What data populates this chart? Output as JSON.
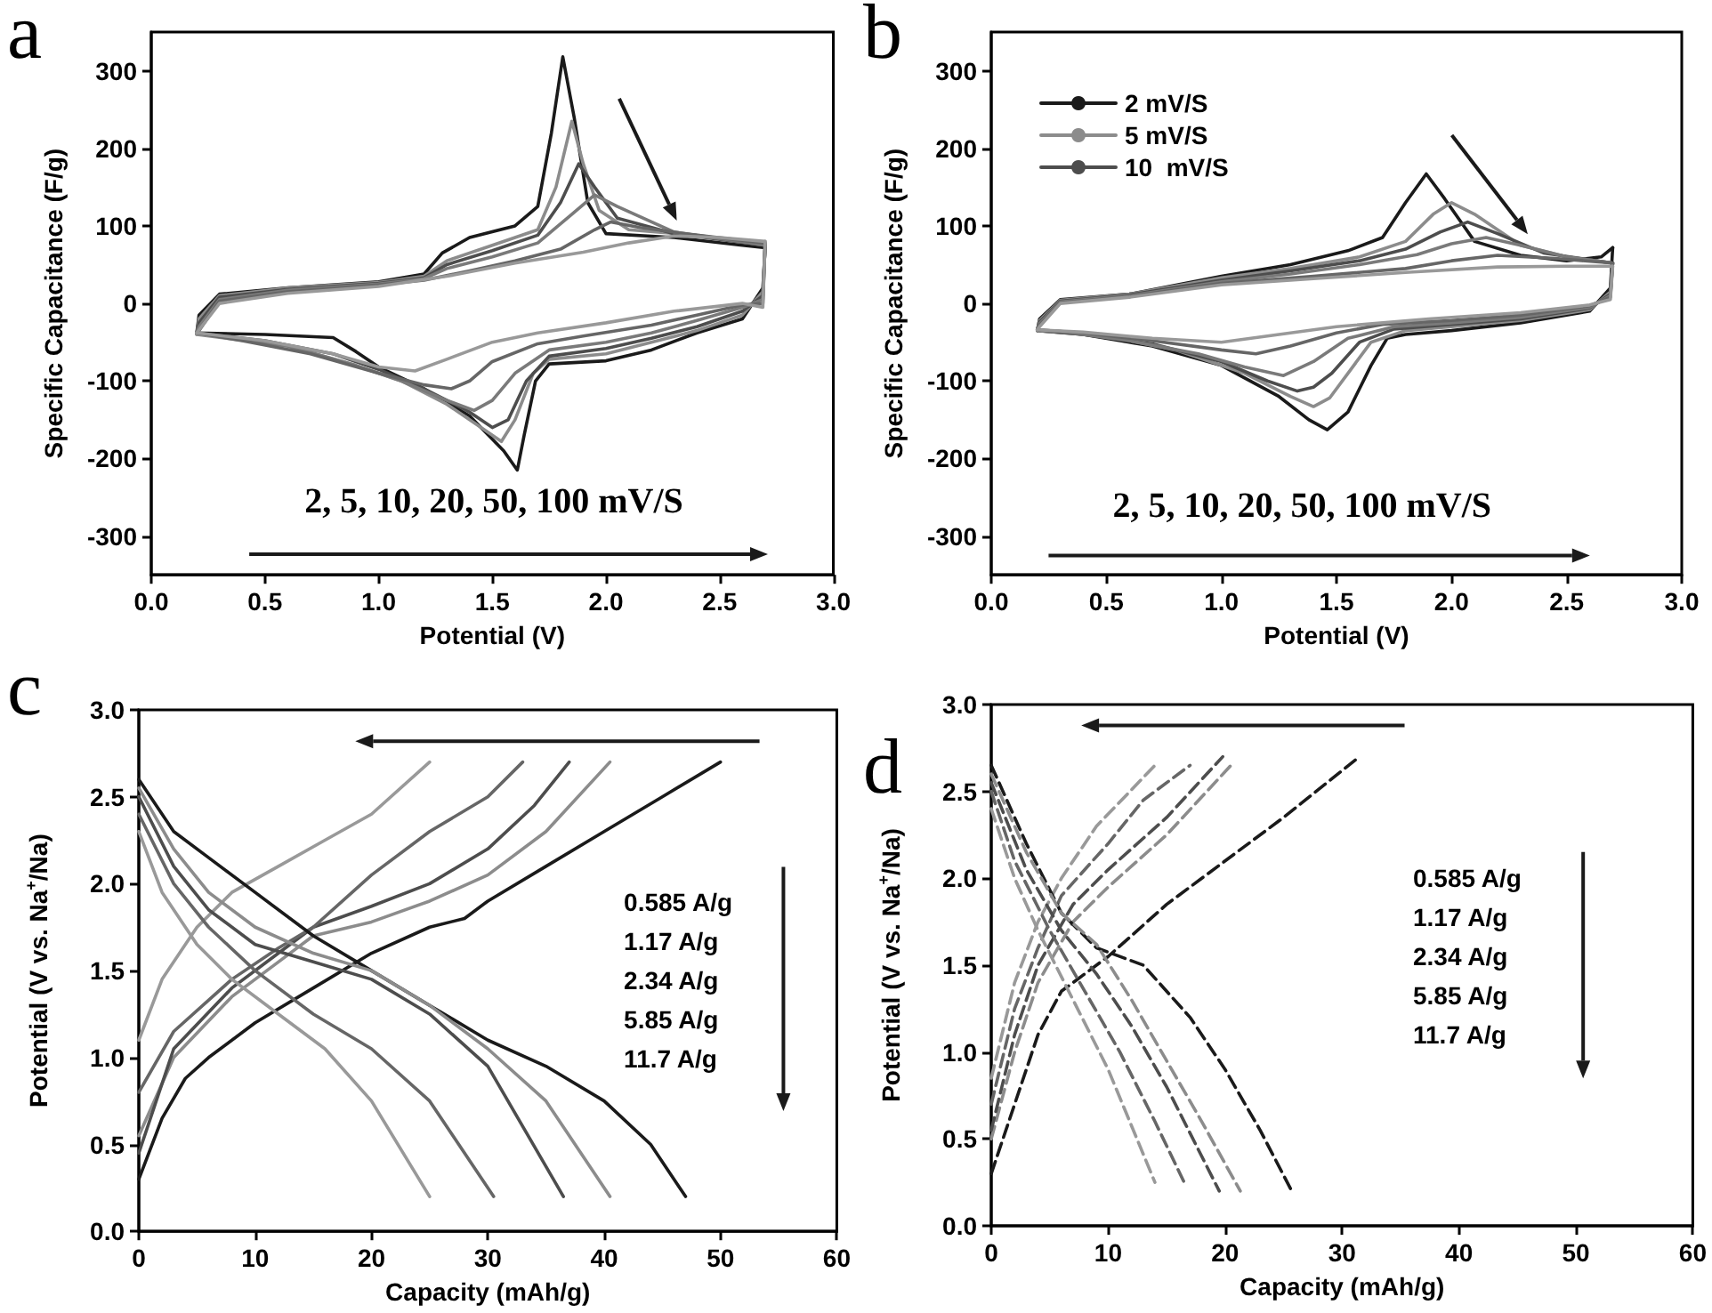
{
  "chart_data": [
    {
      "type": "line",
      "title": "a",
      "xlabel": "Potential (V)",
      "ylabel": "Specific Capacitance (F/g)",
      "xlim": [
        0,
        3
      ],
      "ylim": [
        -350,
        350
      ],
      "xticks": [
        {
          "value": 0,
          "label": "0.0"
        },
        {
          "value": 0.5,
          "label": "0.5"
        },
        {
          "value": 1,
          "label": "1.0"
        },
        {
          "value": 1.5,
          "label": "1.5"
        },
        {
          "value": 2,
          "label": "2.0"
        },
        {
          "value": 2.5,
          "label": "2.5"
        },
        {
          "value": 3,
          "label": "3.0"
        }
      ],
      "yticks": [
        -300,
        -200,
        -100,
        0,
        100,
        200,
        300
      ],
      "annotations": [
        "2, 5, 10, 20, 50, 100 mV/S"
      ],
      "series": [
        {
          "color": "#1a1a1a",
          "x": [
            0.2,
            0.21,
            0.3,
            0.6,
            1.0,
            1.2,
            1.28,
            1.4,
            1.6,
            1.7,
            1.76,
            1.81,
            1.86,
            1.92,
            2.0,
            2.3,
            2.6,
            2.7
          ],
          "values": [
            -38,
            -15,
            12,
            20,
            28,
            38,
            65,
            85,
            100,
            125,
            220,
            318,
            240,
            130,
            90,
            85,
            75,
            72
          ]
        },
        {
          "color": "#1a1a1a",
          "x": [
            2.7,
            2.69,
            2.6,
            2.4,
            2.2,
            2.0,
            1.75,
            1.69,
            1.64,
            1.61,
            1.55,
            1.4,
            1.2,
            1.0,
            0.9,
            0.8,
            0.5,
            0.2
          ],
          "values": [
            72,
            20,
            -20,
            -38,
            -60,
            -74,
            -78,
            -100,
            -170,
            -215,
            -190,
            -145,
            -110,
            -82,
            -62,
            -44,
            -40,
            -38
          ]
        },
        {
          "color": "#8c8c8c",
          "x": [
            0.2,
            0.21,
            0.3,
            0.6,
            1.0,
            1.2,
            1.3,
            1.5,
            1.7,
            1.78,
            1.85,
            1.9,
            1.97,
            2.1,
            2.4,
            2.7
          ],
          "values": [
            -40,
            -20,
            10,
            20,
            27,
            35,
            55,
            75,
            95,
            150,
            235,
            180,
            120,
            95,
            88,
            75
          ]
        },
        {
          "color": "#8c8c8c",
          "x": [
            2.7,
            2.69,
            2.6,
            2.4,
            2.2,
            2.0,
            1.75,
            1.68,
            1.6,
            1.54,
            1.45,
            1.3,
            1.1,
            0.9,
            0.6,
            0.2
          ],
          "values": [
            75,
            15,
            -15,
            -35,
            -50,
            -65,
            -72,
            -90,
            -150,
            -178,
            -160,
            -130,
            -100,
            -80,
            -55,
            -40
          ]
        },
        {
          "color": "#4d4d4d",
          "x": [
            0.2,
            0.21,
            0.3,
            0.6,
            1.0,
            1.2,
            1.3,
            1.5,
            1.7,
            1.8,
            1.88,
            1.95,
            2.05,
            2.3,
            2.7
          ],
          "values": [
            -38,
            -25,
            8,
            18,
            26,
            33,
            50,
            68,
            88,
            130,
            180,
            150,
            110,
            90,
            75
          ]
        },
        {
          "color": "#4d4d4d",
          "x": [
            2.7,
            2.69,
            2.6,
            2.4,
            2.2,
            2.0,
            1.75,
            1.65,
            1.57,
            1.5,
            1.4,
            1.2,
            1.0,
            0.8,
            0.5,
            0.2
          ],
          "values": [
            75,
            10,
            -10,
            -30,
            -45,
            -58,
            -68,
            -100,
            -150,
            -160,
            -140,
            -110,
            -85,
            -65,
            -48,
            -38
          ]
        },
        {
          "color": "#7a7a7a",
          "x": [
            0.2,
            0.21,
            0.3,
            0.6,
            1.0,
            1.2,
            1.3,
            1.5,
            1.7,
            1.85,
            1.95,
            2.05,
            2.3,
            2.7
          ],
          "values": [
            -38,
            -30,
            5,
            17,
            25,
            32,
            45,
            60,
            78,
            115,
            140,
            125,
            92,
            75
          ]
        },
        {
          "color": "#7a7a7a",
          "x": [
            2.7,
            2.69,
            2.6,
            2.4,
            2.2,
            2.0,
            1.75,
            1.6,
            1.5,
            1.42,
            1.3,
            1.1,
            0.9,
            0.6,
            0.2
          ],
          "values": [
            75,
            5,
            -5,
            -22,
            -38,
            -50,
            -60,
            -90,
            -125,
            -138,
            -125,
            -100,
            -80,
            -55,
            -38
          ]
        },
        {
          "color": "#666666",
          "x": [
            0.2,
            0.21,
            0.3,
            0.6,
            1.0,
            1.2,
            1.4,
            1.6,
            1.8,
            1.95,
            2.02,
            2.15,
            2.4,
            2.7
          ],
          "values": [
            -38,
            -35,
            3,
            15,
            24,
            30,
            42,
            55,
            70,
            95,
            105,
            98,
            88,
            78
          ]
        },
        {
          "color": "#666666",
          "x": [
            2.7,
            2.69,
            2.6,
            2.4,
            2.2,
            1.9,
            1.7,
            1.5,
            1.4,
            1.32,
            1.2,
            1.0,
            0.7,
            0.4,
            0.2
          ],
          "values": [
            78,
            0,
            -2,
            -15,
            -28,
            -42,
            -52,
            -75,
            -100,
            -110,
            -105,
            -90,
            -65,
            -48,
            -38
          ]
        },
        {
          "color": "#999999",
          "x": [
            0.2,
            0.3,
            0.6,
            1.0,
            1.3,
            1.6,
            1.9,
            2.1,
            2.3,
            2.5,
            2.7
          ],
          "values": [
            -38,
            0,
            13,
            22,
            35,
            52,
            66,
            78,
            87,
            85,
            80
          ]
        },
        {
          "color": "#999999",
          "x": [
            2.7,
            2.69,
            2.6,
            2.3,
            2.0,
            1.7,
            1.5,
            1.3,
            1.16,
            1.0,
            0.8,
            0.5,
            0.2
          ],
          "values": [
            80,
            -5,
            0,
            -10,
            -25,
            -38,
            -50,
            -72,
            -87,
            -82,
            -65,
            -48,
            -38
          ]
        }
      ]
    },
    {
      "type": "line",
      "title": "b",
      "xlabel": "Potential (V)",
      "ylabel": "Specific Capacitance (F/g)",
      "xlim": [
        0,
        3
      ],
      "ylim": [
        -350,
        350
      ],
      "xticks": [
        {
          "value": 0,
          "label": "0.0"
        },
        {
          "value": 0.5,
          "label": "0.5"
        },
        {
          "value": 1,
          "label": "1.0"
        },
        {
          "value": 1.5,
          "label": "1.5"
        },
        {
          "value": 2,
          "label": "2.0"
        },
        {
          "value": 2.5,
          "label": "2.5"
        },
        {
          "value": 3,
          "label": "3.0"
        }
      ],
      "yticks": [
        -300,
        -200,
        -100,
        0,
        100,
        200,
        300
      ],
      "legend": "top left",
      "annotations": [
        "2, 5, 10, 20, 50, 100 mV/S"
      ],
      "series": [
        {
          "name": "2 mV/S",
          "color": "#1a1a1a",
          "x": [
            0.2,
            0.21,
            0.3,
            0.6,
            1.0,
            1.3,
            1.55,
            1.7,
            1.8,
            1.89,
            1.97,
            2.1,
            2.3,
            2.5,
            2.65,
            2.7
          ],
          "values": [
            -35,
            -20,
            5,
            12,
            35,
            50,
            68,
            85,
            130,
            167,
            135,
            80,
            62,
            55,
            60,
            72
          ]
        },
        {
          "color": "#1a1a1a",
          "x": [
            2.7,
            2.69,
            2.6,
            2.3,
            2.0,
            1.8,
            1.72,
            1.65,
            1.55,
            1.46,
            1.38,
            1.25,
            1.0,
            0.7,
            0.4,
            0.2
          ],
          "values": [
            72,
            20,
            -10,
            -25,
            -35,
            -40,
            -45,
            -80,
            -140,
            -163,
            -150,
            -120,
            -80,
            -55,
            -40,
            -35
          ]
        },
        {
          "name": "5 mV/S",
          "color": "#8c8c8c",
          "x": [
            0.2,
            0.21,
            0.3,
            0.6,
            1.0,
            1.3,
            1.6,
            1.8,
            1.92,
            2.0,
            2.1,
            2.3,
            2.5,
            2.7
          ],
          "values": [
            -35,
            -22,
            4,
            12,
            33,
            45,
            60,
            80,
            115,
            130,
            115,
            75,
            60,
            52
          ]
        },
        {
          "color": "#8c8c8c",
          "x": [
            2.7,
            2.69,
            2.6,
            2.3,
            2.0,
            1.8,
            1.65,
            1.55,
            1.47,
            1.4,
            1.3,
            1.1,
            0.8,
            0.5,
            0.2
          ],
          "values": [
            52,
            15,
            -8,
            -22,
            -30,
            -35,
            -50,
            -90,
            -122,
            -133,
            -120,
            -90,
            -60,
            -42,
            -35
          ]
        },
        {
          "name": "10  mV/S",
          "color": "#4d4d4d",
          "x": [
            0.2,
            0.21,
            0.3,
            0.6,
            1.0,
            1.3,
            1.6,
            1.8,
            1.95,
            2.07,
            2.2,
            2.4,
            2.7
          ],
          "values": [
            -34,
            -24,
            3,
            11,
            30,
            42,
            55,
            70,
            92,
            105,
            90,
            65,
            52
          ]
        },
        {
          "color": "#4d4d4d",
          "x": [
            2.7,
            2.69,
            2.6,
            2.3,
            2.0,
            1.75,
            1.6,
            1.48,
            1.4,
            1.33,
            1.2,
            1.0,
            0.7,
            0.4,
            0.2
          ],
          "values": [
            52,
            12,
            -6,
            -20,
            -27,
            -33,
            -50,
            -90,
            -108,
            -113,
            -100,
            -75,
            -52,
            -40,
            -34
          ]
        },
        {
          "color": "#7a7a7a",
          "x": [
            0.2,
            0.21,
            0.3,
            0.6,
            1.0,
            1.3,
            1.6,
            1.85,
            2.0,
            2.15,
            2.3,
            2.5,
            2.7
          ],
          "values": [
            -34,
            -26,
            2,
            10,
            28,
            38,
            50,
            63,
            77,
            85,
            75,
            60,
            52
          ]
        },
        {
          "color": "#7a7a7a",
          "x": [
            2.7,
            2.69,
            2.6,
            2.3,
            2.0,
            1.75,
            1.55,
            1.4,
            1.27,
            1.1,
            0.9,
            0.6,
            0.3,
            0.2
          ],
          "values": [
            52,
            10,
            -5,
            -18,
            -25,
            -30,
            -45,
            -75,
            -93,
            -82,
            -65,
            -48,
            -36,
            -34
          ]
        },
        {
          "color": "#666666",
          "x": [
            0.2,
            0.21,
            0.3,
            0.6,
            1.0,
            1.4,
            1.8,
            2.0,
            2.2,
            2.45,
            2.7
          ],
          "values": [
            -34,
            -28,
            1,
            9,
            26,
            35,
            45,
            55,
            62,
            58,
            52
          ]
        },
        {
          "color": "#666666",
          "x": [
            2.7,
            2.69,
            2.6,
            2.3,
            2.0,
            1.7,
            1.5,
            1.3,
            1.15,
            1.0,
            0.7,
            0.4,
            0.2
          ],
          "values": [
            52,
            8,
            -3,
            -15,
            -22,
            -27,
            -38,
            -55,
            -65,
            -60,
            -48,
            -38,
            -34
          ]
        },
        {
          "color": "#999999",
          "x": [
            0.2,
            0.21,
            0.3,
            0.6,
            1.0,
            1.4,
            1.8,
            2.2,
            2.5,
            2.7
          ],
          "values": [
            -34,
            -30,
            0,
            8,
            24,
            32,
            40,
            47,
            48,
            48
          ]
        },
        {
          "color": "#999999",
          "x": [
            2.7,
            2.69,
            2.6,
            2.3,
            1.9,
            1.5,
            1.2,
            1.0,
            0.7,
            0.4,
            0.2
          ],
          "values": [
            48,
            5,
            -2,
            -12,
            -20,
            -30,
            -42,
            -50,
            -45,
            -37,
            -34
          ]
        }
      ]
    },
    {
      "type": "line",
      "title": "c",
      "xlabel": "Capacity (mAh/g)",
      "ylabel": "Potential (V vs. Na$^{+}$/Na)",
      "xlim": [
        0,
        60
      ],
      "ylim": [
        0,
        3
      ],
      "xticks": [
        0,
        10,
        20,
        30,
        40,
        50,
        60
      ],
      "yticks": [
        {
          "value": 0,
          "label": "0.0"
        },
        {
          "value": 0.5,
          "label": "0.5"
        },
        {
          "value": 1,
          "label": "1.0"
        },
        {
          "value": 1.5,
          "label": "1.5"
        },
        {
          "value": 2,
          "label": "2.0"
        },
        {
          "value": 2.5,
          "label": "2.5"
        },
        {
          "value": 3,
          "label": "3.0"
        }
      ],
      "annotations": [
        "0.585 A/g",
        "1.17 A/g",
        "2.34 A/g",
        "5.85 A/g",
        "11.7 A/g"
      ],
      "series": [
        {
          "color": "#1a1a1a",
          "x": [
            0,
            2,
            4,
            6,
            10,
            15,
            20,
            25,
            28,
            30,
            35,
            40,
            45,
            50
          ],
          "values": [
            0.3,
            0.65,
            0.88,
            1.0,
            1.2,
            1.4,
            1.6,
            1.75,
            1.8,
            1.9,
            2.1,
            2.3,
            2.5,
            2.7
          ]
        },
        {
          "color": "#8c8c8c",
          "x": [
            0,
            3,
            8,
            12,
            15,
            20,
            25,
            30,
            35,
            40.5
          ],
          "values": [
            0.55,
            1.0,
            1.35,
            1.55,
            1.7,
            1.78,
            1.9,
            2.05,
            2.3,
            2.7
          ]
        },
        {
          "color": "#4d4d4d",
          "x": [
            0,
            3,
            8,
            12,
            15,
            20,
            25,
            30,
            34,
            37
          ],
          "values": [
            0.45,
            1.05,
            1.4,
            1.6,
            1.75,
            1.87,
            2.0,
            2.2,
            2.45,
            2.7
          ]
        },
        {
          "color": "#666666",
          "x": [
            0,
            3,
            8,
            12,
            15,
            20,
            25,
            30,
            33
          ],
          "values": [
            0.8,
            1.15,
            1.45,
            1.63,
            1.75,
            2.05,
            2.3,
            2.5,
            2.7
          ]
        },
        {
          "color": "#999999",
          "x": [
            0,
            2,
            5,
            8,
            12,
            16,
            20,
            25
          ],
          "values": [
            1.1,
            1.45,
            1.75,
            1.95,
            2.1,
            2.25,
            2.4,
            2.7
          ]
        },
        {
          "color": "#1a1a1a",
          "x": [
            0,
            3,
            6,
            10,
            15,
            20,
            25,
            30,
            35,
            40,
            44,
            47
          ],
          "values": [
            2.6,
            2.3,
            2.15,
            1.95,
            1.7,
            1.5,
            1.3,
            1.1,
            0.95,
            0.75,
            0.5,
            0.2
          ]
        },
        {
          "color": "#8c8c8c",
          "x": [
            0,
            3,
            6,
            10,
            15,
            20,
            25,
            30,
            35,
            40.5
          ],
          "values": [
            2.55,
            2.2,
            1.95,
            1.75,
            1.6,
            1.5,
            1.3,
            1.05,
            0.75,
            0.2
          ]
        },
        {
          "color": "#4d4d4d",
          "x": [
            0,
            3,
            6,
            10,
            15,
            20,
            25,
            30,
            36.5
          ],
          "values": [
            2.5,
            2.1,
            1.85,
            1.65,
            1.55,
            1.45,
            1.25,
            0.95,
            0.2
          ]
        },
        {
          "color": "#666666",
          "x": [
            0,
            3,
            6,
            10,
            15,
            20,
            25,
            30.5
          ],
          "values": [
            2.4,
            2.0,
            1.75,
            1.5,
            1.25,
            1.05,
            0.75,
            0.2
          ]
        },
        {
          "color": "#999999",
          "x": [
            0,
            2,
            5,
            8,
            12,
            16,
            20,
            25
          ],
          "values": [
            2.3,
            1.95,
            1.65,
            1.45,
            1.25,
            1.05,
            0.75,
            0.2
          ]
        }
      ]
    },
    {
      "type": "line",
      "title": "d",
      "xlabel": "Capacity (mAh/g)",
      "ylabel": "Potential (V vs. Na$^{+}$/Na)",
      "xlim": [
        0,
        60
      ],
      "ylim": [
        0,
        3
      ],
      "line_style": "dashed",
      "xticks": [
        0,
        10,
        20,
        30,
        40,
        50,
        60
      ],
      "yticks": [
        {
          "value": 0,
          "label": "0.0"
        },
        {
          "value": 0.5,
          "label": "0.5"
        },
        {
          "value": 1,
          "label": "1.0"
        },
        {
          "value": 1.5,
          "label": "1.5"
        },
        {
          "value": 2,
          "label": "2.0"
        },
        {
          "value": 2.5,
          "label": "2.5"
        },
        {
          "value": 3,
          "label": "3.0"
        }
      ],
      "annotations": [
        "0.585 A/g",
        "1.17 A/g",
        "2.34 A/g",
        "5.85 A/g",
        "11.7 A/g"
      ],
      "series": [
        {
          "color": "#1a1a1a",
          "x": [
            0,
            2,
            4,
            6,
            10,
            15,
            20,
            25,
            31.5
          ],
          "values": [
            0.3,
            0.7,
            1.1,
            1.35,
            1.55,
            1.85,
            2.1,
            2.35,
            2.7
          ]
        },
        {
          "color": "#8c8c8c",
          "x": [
            0,
            2,
            4,
            7,
            10,
            15,
            20.5
          ],
          "values": [
            0.5,
            1.0,
            1.4,
            1.75,
            1.95,
            2.25,
            2.65
          ]
        },
        {
          "color": "#4d4d4d",
          "x": [
            0,
            2,
            4,
            7,
            10,
            15,
            19.8
          ],
          "values": [
            0.55,
            1.1,
            1.5,
            1.85,
            2.05,
            2.35,
            2.7
          ]
        },
        {
          "color": "#666666",
          "x": [
            0,
            2,
            4,
            6,
            10,
            13,
            17
          ],
          "values": [
            0.7,
            1.25,
            1.6,
            1.9,
            2.2,
            2.45,
            2.65
          ]
        },
        {
          "color": "#999999",
          "x": [
            0,
            2,
            4,
            6,
            9,
            14
          ],
          "values": [
            0.85,
            1.4,
            1.75,
            2.0,
            2.3,
            2.65
          ]
        },
        {
          "color": "#1a1a1a",
          "x": [
            0,
            3,
            6,
            9,
            13,
            17,
            20,
            23,
            25.7
          ],
          "values": [
            2.65,
            2.2,
            1.8,
            1.6,
            1.5,
            1.2,
            0.9,
            0.55,
            0.2
          ]
        },
        {
          "color": "#8c8c8c",
          "x": [
            0,
            3,
            6,
            9,
            12,
            15,
            18,
            21.3
          ],
          "values": [
            2.6,
            2.15,
            1.8,
            1.62,
            1.3,
            0.95,
            0.6,
            0.2
          ]
        },
        {
          "color": "#4d4d4d",
          "x": [
            0,
            3,
            6,
            9,
            12,
            15,
            19.5
          ],
          "values": [
            2.55,
            2.05,
            1.7,
            1.45,
            1.15,
            0.8,
            0.2
          ]
        },
        {
          "color": "#666666",
          "x": [
            0,
            2,
            5,
            8,
            11,
            14,
            16.5
          ],
          "values": [
            2.5,
            2.1,
            1.7,
            1.35,
            1.0,
            0.6,
            0.25
          ]
        },
        {
          "color": "#999999",
          "x": [
            0,
            2,
            4,
            7,
            10,
            14
          ],
          "values": [
            2.4,
            2.0,
            1.7,
            1.3,
            0.9,
            0.25
          ]
        }
      ]
    }
  ]
}
